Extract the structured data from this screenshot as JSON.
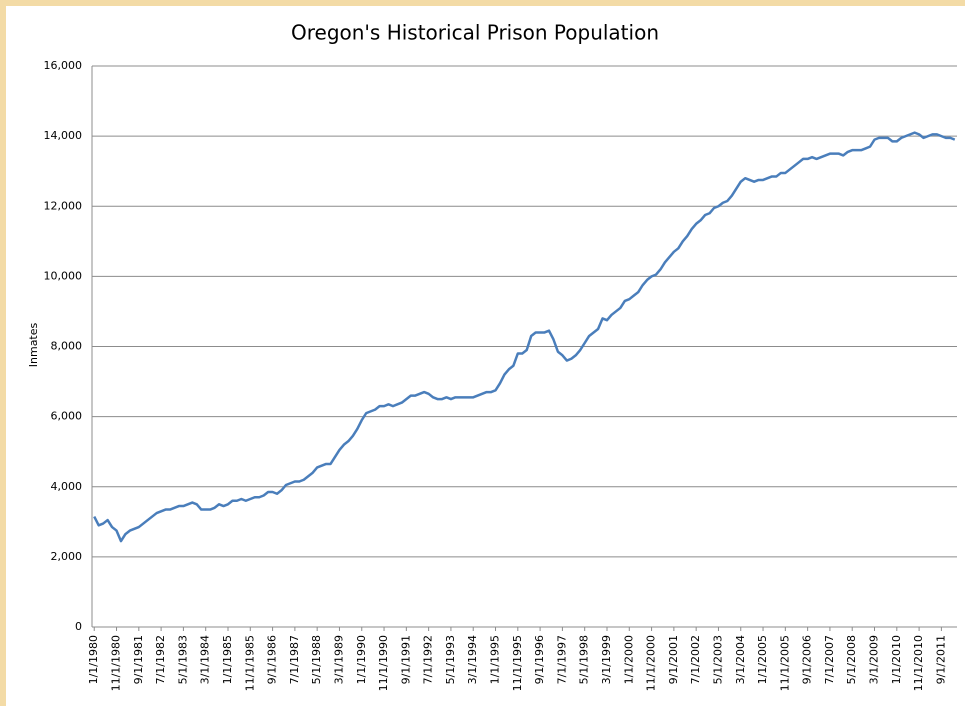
{
  "chart_data": {
    "type": "line",
    "title": "Oregon's Historical Prison Population",
    "y_label": "Inmates",
    "categories": [
      "1/1/1980",
      null,
      null,
      null,
      null,
      "11/1/1980",
      null,
      null,
      null,
      null,
      "9/1/1981",
      null,
      null,
      null,
      null,
      "7/1/1982",
      null,
      null,
      null,
      null,
      "5/1/1983",
      null,
      null,
      null,
      null,
      "3/1/1984",
      null,
      null,
      null,
      null,
      "1/1/1985",
      null,
      null,
      null,
      null,
      "11/1/1985",
      null,
      null,
      null,
      null,
      "9/1/1986",
      null,
      null,
      null,
      null,
      "7/1/1987",
      null,
      null,
      null,
      null,
      "5/1/1988",
      null,
      null,
      null,
      null,
      "3/1/1989",
      null,
      null,
      null,
      null,
      "1/1/1990",
      null,
      null,
      null,
      null,
      "11/1/1990",
      null,
      null,
      null,
      null,
      "9/1/1991",
      null,
      null,
      null,
      null,
      "7/1/1992",
      null,
      null,
      null,
      null,
      "5/1/1993",
      null,
      null,
      null,
      null,
      "3/1/1994",
      null,
      null,
      null,
      null,
      "1/1/1995",
      null,
      null,
      null,
      null,
      "11/1/1995",
      null,
      null,
      null,
      null,
      "9/1/1996",
      null,
      null,
      null,
      null,
      "7/1/1997",
      null,
      null,
      null,
      null,
      "5/1/1998",
      null,
      null,
      null,
      null,
      "3/1/1999",
      null,
      null,
      null,
      null,
      "1/1/2000",
      null,
      null,
      null,
      null,
      "11/1/2000",
      null,
      null,
      null,
      null,
      "9/1/2001",
      null,
      null,
      null,
      null,
      "7/1/2002",
      null,
      null,
      null,
      null,
      "5/1/2003",
      null,
      null,
      null,
      null,
      "3/1/2004",
      null,
      null,
      null,
      null,
      "1/1/2005",
      null,
      null,
      null,
      null,
      "11/1/2005",
      null,
      null,
      null,
      null,
      "9/1/2006",
      null,
      null,
      null,
      null,
      "7/1/2007",
      null,
      null,
      null,
      null,
      "5/1/2008",
      null,
      null,
      null,
      null,
      "3/1/2009",
      null,
      null,
      null,
      null,
      "1/1/2010",
      null,
      null,
      null,
      null,
      "11/1/2010",
      null,
      null,
      null,
      null,
      "9/1/2011",
      null,
      null,
      null
    ],
    "values": [
      3150,
      2900,
      2950,
      3050,
      2850,
      2750,
      2450,
      2650,
      2750,
      2800,
      2850,
      2950,
      3050,
      3150,
      3250,
      3300,
      3350,
      3350,
      3400,
      3450,
      3450,
      3500,
      3550,
      3500,
      3350,
      3350,
      3350,
      3400,
      3500,
      3450,
      3500,
      3600,
      3600,
      3650,
      3600,
      3650,
      3700,
      3700,
      3750,
      3850,
      3850,
      3800,
      3900,
      4050,
      4100,
      4150,
      4150,
      4200,
      4300,
      4400,
      4550,
      4600,
      4650,
      4650,
      4850,
      5050,
      5200,
      5300,
      5450,
      5650,
      5900,
      6100,
      6150,
      6200,
      6300,
      6300,
      6350,
      6300,
      6350,
      6400,
      6500,
      6600,
      6600,
      6650,
      6700,
      6650,
      6550,
      6500,
      6500,
      6550,
      6500,
      6550,
      6550,
      6550,
      6550,
      6550,
      6600,
      6650,
      6700,
      6700,
      6750,
      6950,
      7200,
      7350,
      7450,
      7800,
      7800,
      7900,
      8300,
      8400,
      8400,
      8400,
      8450,
      8200,
      7850,
      7750,
      7600,
      7650,
      7750,
      7900,
      8100,
      8300,
      8400,
      8500,
      8800,
      8750,
      8900,
      9000,
      9100,
      9300,
      9350,
      9450,
      9550,
      9750,
      9900,
      10000,
      10050,
      10200,
      10400,
      10550,
      10700,
      10800,
      11000,
      11150,
      11350,
      11500,
      11600,
      11750,
      11800,
      11950,
      12000,
      12100,
      12150,
      12300,
      12500,
      12700,
      12800,
      12750,
      12700,
      12750,
      12750,
      12800,
      12850,
      12850,
      12950,
      12950,
      13050,
      13150,
      13250,
      13350,
      13350,
      13400,
      13350,
      13400,
      13450,
      13500,
      13500,
      13500,
      13450,
      13550,
      13600,
      13600,
      13600,
      13650,
      13700,
      13900,
      13950,
      13950,
      13950,
      13850,
      13850,
      13950,
      14000,
      14050,
      14100,
      14050,
      13950,
      14000,
      14050,
      14050,
      14000,
      13950,
      13950,
      13900
    ],
    "color": "#4a7ebb",
    "ylim": [
      0,
      16000
    ],
    "yticks": [
      0,
      {
        "value": 2000,
        "label": "2,000"
      },
      {
        "value": 4000,
        "label": "4,000"
      },
      {
        "value": 6000,
        "label": "6,000"
      },
      {
        "value": 8000,
        "label": "8,000"
      },
      {
        "value": 10000,
        "label": "10,000"
      },
      {
        "value": 12000,
        "label": "12,000"
      },
      {
        "value": 14000,
        "label": "14,000"
      },
      {
        "value": 16000,
        "label": "16,000"
      }
    ],
    "grid": true
  }
}
